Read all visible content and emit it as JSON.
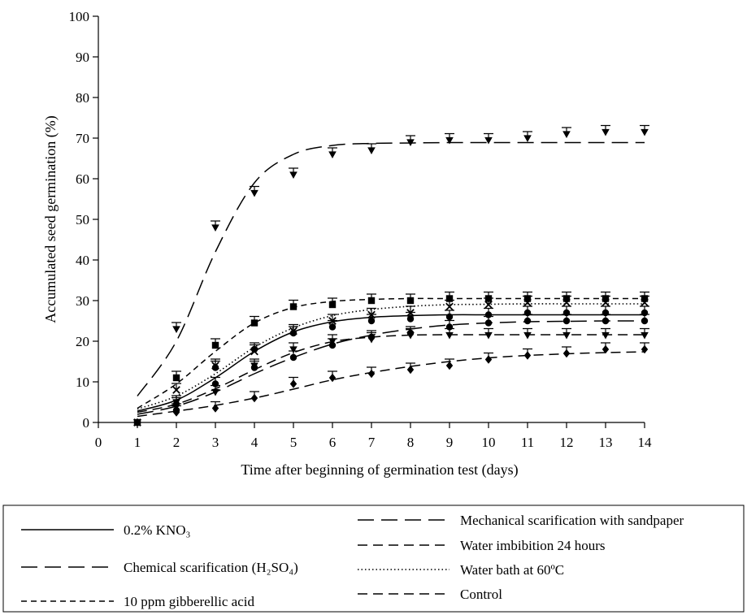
{
  "chart_data": {
    "type": "line",
    "xlabel": "Time after beginning of germination test (days)",
    "ylabel": "Accumulated seed germination (%)",
    "xlim": [
      0,
      14
    ],
    "ylim": [
      0,
      100
    ],
    "x_ticks": [
      0,
      1,
      2,
      3,
      4,
      5,
      6,
      7,
      8,
      9,
      10,
      11,
      12,
      13,
      14
    ],
    "y_ticks": [
      0,
      10,
      20,
      30,
      40,
      50,
      60,
      70,
      80,
      90,
      100
    ],
    "grid": false,
    "legend_position": "bottom",
    "x": [
      1,
      2,
      3,
      4,
      5,
      6,
      7,
      8,
      9,
      10,
      11,
      12,
      13,
      14
    ],
    "series": [
      {
        "name": "0.2% KNO₃",
        "line_style": "solid",
        "marker": "circle",
        "values": [
          0,
          4.5,
          13.5,
          18,
          22,
          23.5,
          25,
          25.5,
          26,
          26.5,
          27,
          27,
          27,
          27
        ],
        "fit": [
          2.8,
          5.5,
          11,
          17.5,
          22.3,
          24.8,
          25.9,
          26.3,
          26.5,
          26.5,
          26.5,
          26.5,
          26.5,
          26.5
        ]
      },
      {
        "name": "Chemical scarification (H₂SO₄)",
        "line_style": "long-dash",
        "marker": "triangle-down",
        "values": [
          0,
          23,
          48,
          56.5,
          61,
          66,
          67,
          69,
          69.5,
          69.5,
          70,
          71,
          71.5,
          71.5
        ],
        "fit": [
          6.5,
          20,
          42,
          59,
          66,
          68.2,
          68.7,
          68.8,
          68.9,
          68.9,
          68.9,
          68.9,
          68.9,
          68.9
        ]
      },
      {
        "name": "10 ppm gibberellic acid",
        "line_style": "short-dash",
        "marker": "square",
        "values": [
          0,
          11,
          19,
          24.5,
          28.5,
          29,
          30,
          30,
          30.5,
          30.5,
          30.5,
          30.5,
          30.5,
          30.5
        ],
        "fit": [
          3.5,
          9.5,
          17.5,
          24.5,
          28.3,
          29.8,
          30.3,
          30.5,
          30.5,
          30.5,
          30.5,
          30.5,
          30.5,
          30.5
        ]
      },
      {
        "name": "Mechanical scarification with sandpaper",
        "line_style": "long-dash",
        "marker": "circle",
        "values": [
          0,
          3,
          9.5,
          13.5,
          16,
          19,
          21,
          22,
          23.5,
          24.5,
          25,
          25,
          25,
          25
        ],
        "fit": [
          2,
          4,
          7.5,
          12,
          16,
          19.3,
          21.5,
          23,
          24,
          24.5,
          24.8,
          24.9,
          25,
          25
        ]
      },
      {
        "name": "Water imbibition 24 hours",
        "line_style": "dash",
        "marker": "triangle-down",
        "values": [
          0,
          5,
          7.5,
          14,
          18,
          20,
          20.5,
          21.5,
          21.5,
          21.5,
          21.5,
          21.5,
          21.5,
          21.5
        ],
        "fit": [
          2.5,
          4.5,
          8.3,
          13,
          17.2,
          19.9,
          21,
          21.5,
          21.6,
          21.6,
          21.6,
          21.6,
          21.6,
          21.6
        ]
      },
      {
        "name": "Water bath  at 60ºC",
        "line_style": "dotted",
        "marker": "x",
        "values": [
          0,
          8,
          14,
          17.5,
          22.5,
          25,
          26.5,
          27,
          28.5,
          29,
          29.5,
          29.5,
          29.5,
          29.5
        ],
        "fit": [
          3.3,
          6.5,
          12,
          18.5,
          23.3,
          26.3,
          27.8,
          28.6,
          29,
          29.1,
          29.2,
          29.2,
          29.2,
          29.2
        ]
      },
      {
        "name": "Control",
        "line_style": "dash",
        "marker": "diamond",
        "values": [
          0,
          2.5,
          3.5,
          6,
          9.5,
          11,
          12,
          13,
          14,
          15.5,
          16.5,
          17,
          18,
          18
        ],
        "fit": [
          1.5,
          2.8,
          4.2,
          6,
          8.2,
          10.5,
          12.3,
          13.8,
          15,
          15.9,
          16.5,
          16.9,
          17.2,
          17.4
        ]
      }
    ]
  }
}
